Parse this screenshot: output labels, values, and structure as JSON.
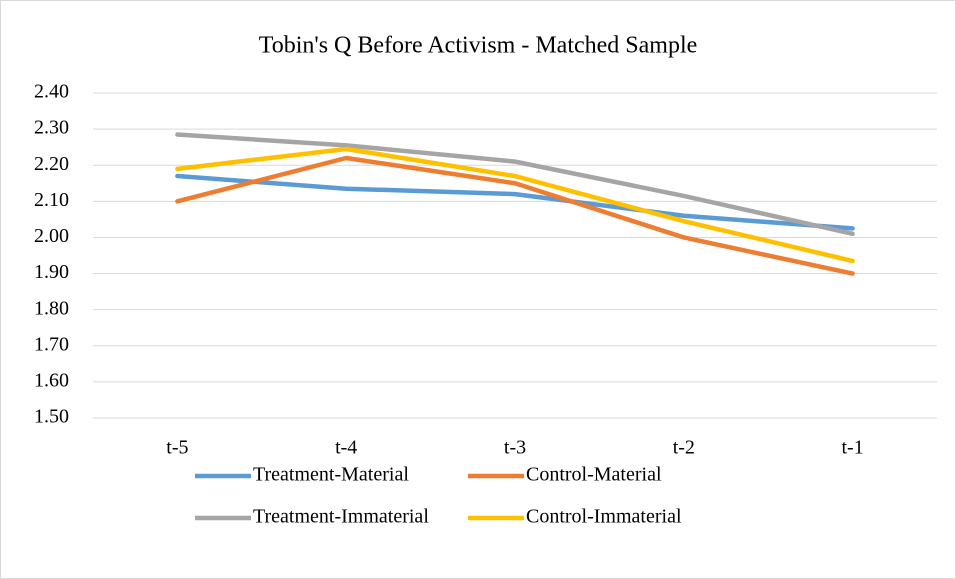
{
  "chart_data": {
    "type": "line",
    "title": "Tobin's Q Before Activism - Matched Sample",
    "categories": [
      "t-5",
      "t-4",
      "t-3",
      "t-2",
      "t-1"
    ],
    "series": [
      {
        "name": "Treatment-Material",
        "color": "#5b9bd5",
        "values": [
          2.17,
          2.135,
          2.12,
          2.06,
          2.025
        ]
      },
      {
        "name": "Control-Material",
        "color": "#ed7d31",
        "values": [
          2.1,
          2.22,
          2.15,
          2.0,
          1.9
        ]
      },
      {
        "name": "Treatment-Immaterial",
        "color": "#a5a5a5",
        "values": [
          2.285,
          2.255,
          2.21,
          2.115,
          2.01
        ]
      },
      {
        "name": "Control-Immaterial",
        "color": "#ffc000",
        "values": [
          2.19,
          2.245,
          2.17,
          2.045,
          1.935
        ]
      }
    ],
    "ylim": [
      1.5,
      2.4
    ],
    "yticks": [
      {
        "value": 1.5,
        "label": "1.50"
      },
      {
        "value": 1.6,
        "label": "1.60"
      },
      {
        "value": 1.7,
        "label": "1.70"
      },
      {
        "value": 1.8,
        "label": "1.80"
      },
      {
        "value": 1.9,
        "label": "1.90"
      },
      {
        "value": 2.0,
        "label": "2.00"
      },
      {
        "value": 2.1,
        "label": "2.10"
      },
      {
        "value": 2.2,
        "label": "2.20"
      },
      {
        "value": 2.3,
        "label": "2.30"
      },
      {
        "value": 2.4,
        "label": "2.40"
      }
    ],
    "grid": true,
    "legend": "bottom"
  }
}
